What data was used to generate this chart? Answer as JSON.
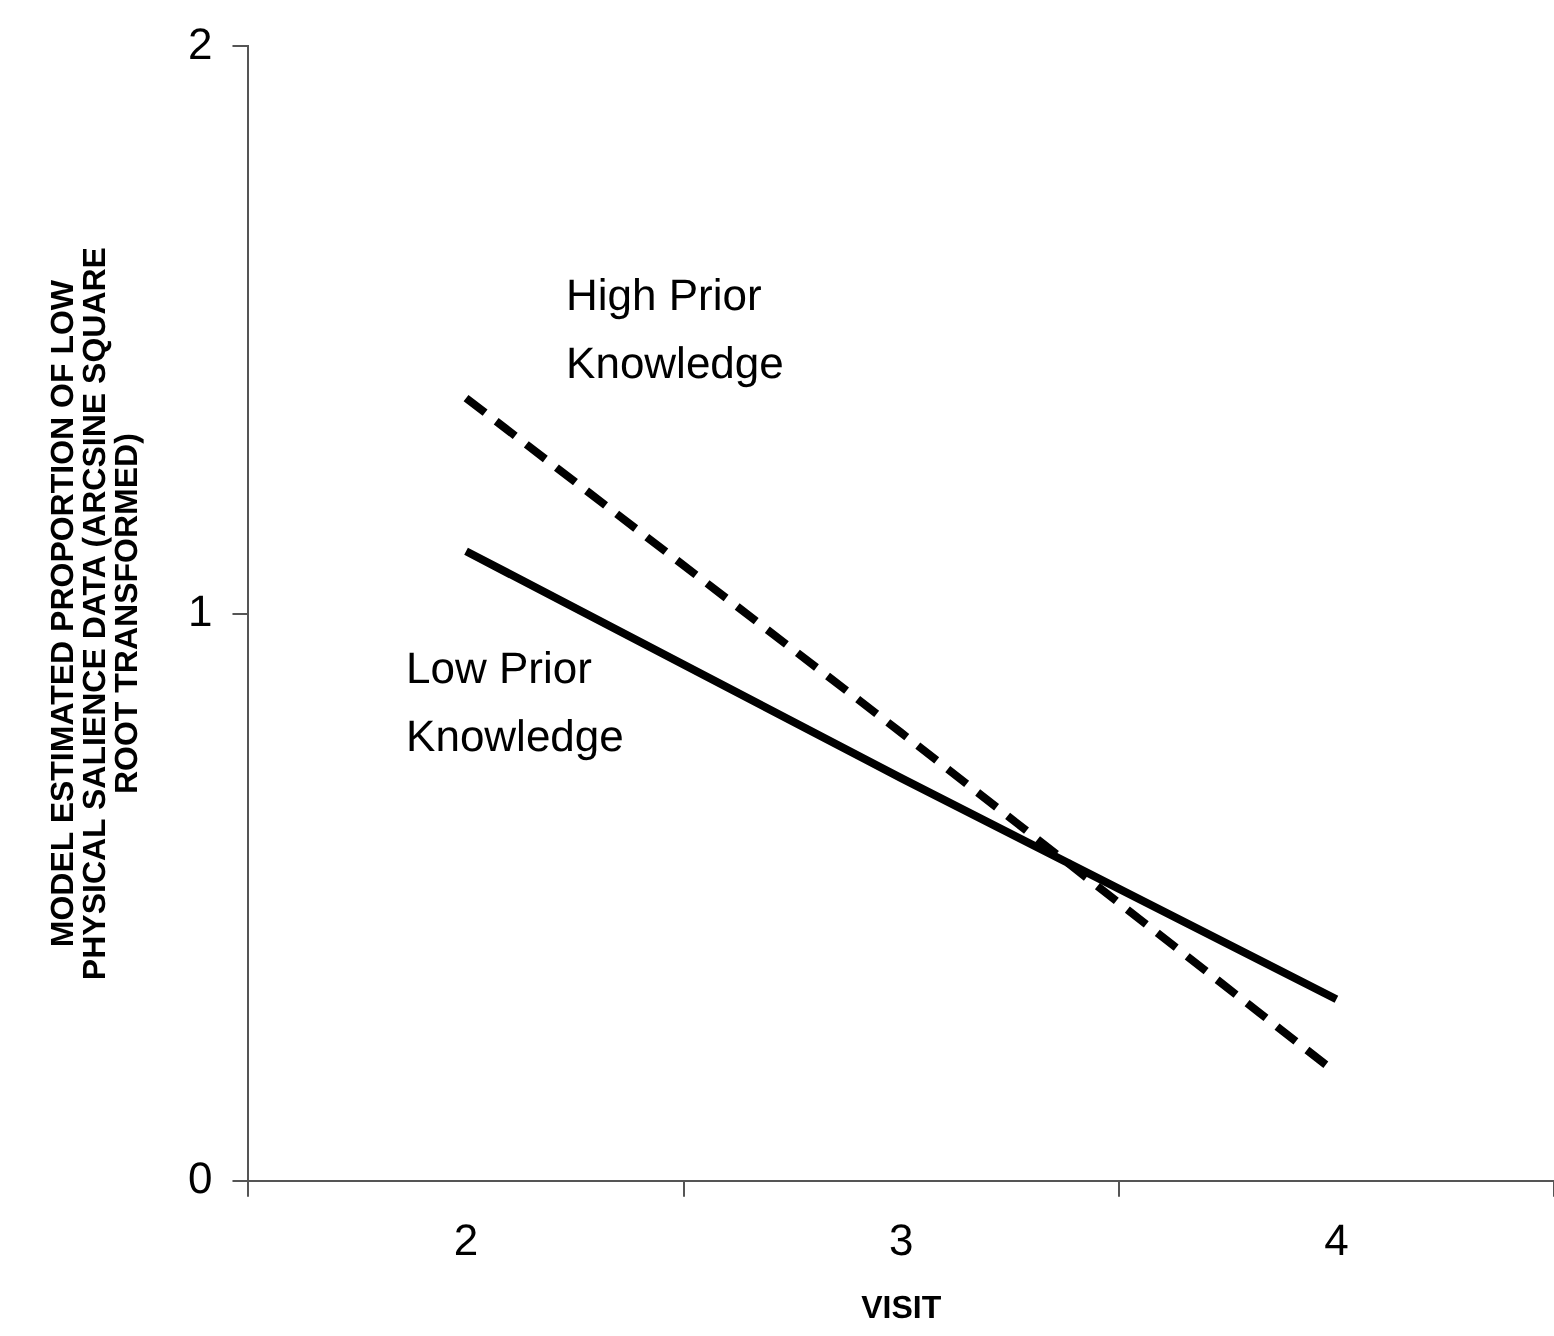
{
  "chart_data": {
    "type": "line",
    "xlabel": "VISIT",
    "ylabel": "MODEL ESTIMATED PROPORTION OF LOW PHYSICAL SALIENCE DATA (ARCSINE SQUARE ROOT TRANSFORMED)",
    "categories": [
      "2",
      "3",
      "4"
    ],
    "ylim": [
      0,
      2
    ],
    "yticks": [
      0,
      1,
      2
    ],
    "grid": false,
    "legend": false,
    "marker": "none",
    "series": [
      {
        "name": "High Prior Knowledge",
        "color": "#000000",
        "line_style": "dashed",
        "values": [
          1.38,
          0.79,
          0.19
        ]
      },
      {
        "name": "Low Prior Knowledge",
        "color": "#000000",
        "line_style": "solid",
        "values": [
          1.11,
          0.71,
          0.32
        ]
      }
    ]
  }
}
